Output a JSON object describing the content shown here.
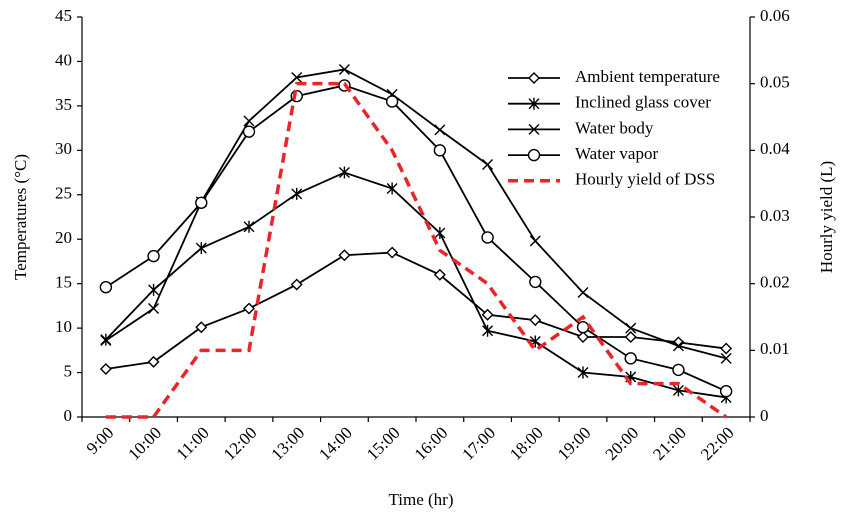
{
  "chart_data": {
    "type": "line",
    "x_label": "Time (hr)",
    "y_label": "Temperatures (°C)",
    "y2_label": "Hourly yield (L)",
    "categories": [
      "9:00",
      "10:00",
      "11:00",
      "12:00",
      "13:00",
      "14:00",
      "15:00",
      "16:00",
      "17:00",
      "18:00",
      "19:00",
      "20:00",
      "21:00",
      "22:00"
    ],
    "ylim": [
      0,
      45
    ],
    "yticks": [
      0,
      5,
      10,
      15,
      20,
      25,
      30,
      35,
      40,
      45
    ],
    "y2lim": [
      0,
      0.06
    ],
    "y2ticks": [
      0,
      0.01,
      0.02,
      0.03,
      0.04,
      0.05,
      0.06
    ],
    "grid": false,
    "legend": "upper right",
    "series": [
      {
        "name": "Ambient temperature",
        "color": "#000000",
        "marker": "diamond",
        "values": [
          5.4,
          6.2,
          10.1,
          12.2,
          14.9,
          18.2,
          18.5,
          16.0,
          11.5,
          10.9,
          9.0,
          9.0,
          8.4,
          7.7
        ]
      },
      {
        "name": "Inclined glass cover",
        "color": "#000000",
        "marker": "asterisk",
        "values": [
          8.7,
          14.3,
          19.0,
          21.4,
          25.1,
          27.5,
          25.7,
          20.7,
          9.7,
          8.5,
          5.0,
          4.5,
          3.0,
          2.2
        ]
      },
      {
        "name": "Water body",
        "color": "#000000",
        "marker": "x",
        "values": [
          8.6,
          12.2,
          24.2,
          33.3,
          38.2,
          39.1,
          36.3,
          32.3,
          28.4,
          19.8,
          14.0,
          10.0,
          8.0,
          6.6
        ]
      },
      {
        "name": "Water vapor",
        "color": "#000000",
        "marker": "circle",
        "values": [
          14.6,
          18.1,
          24.1,
          32.1,
          36.1,
          37.3,
          35.5,
          30.0,
          20.2,
          15.2,
          10.1,
          6.6,
          5.3,
          2.9
        ]
      },
      {
        "name": "Hourly yield of DSS",
        "color": "#e8262a",
        "marker": "none",
        "dashed": true,
        "axis": "y2",
        "values": [
          0,
          0,
          0.01,
          0.01,
          0.05,
          0.05,
          0.04,
          0.025,
          0.02,
          0.01,
          0.015,
          0.005,
          0.005,
          0
        ]
      }
    ]
  }
}
